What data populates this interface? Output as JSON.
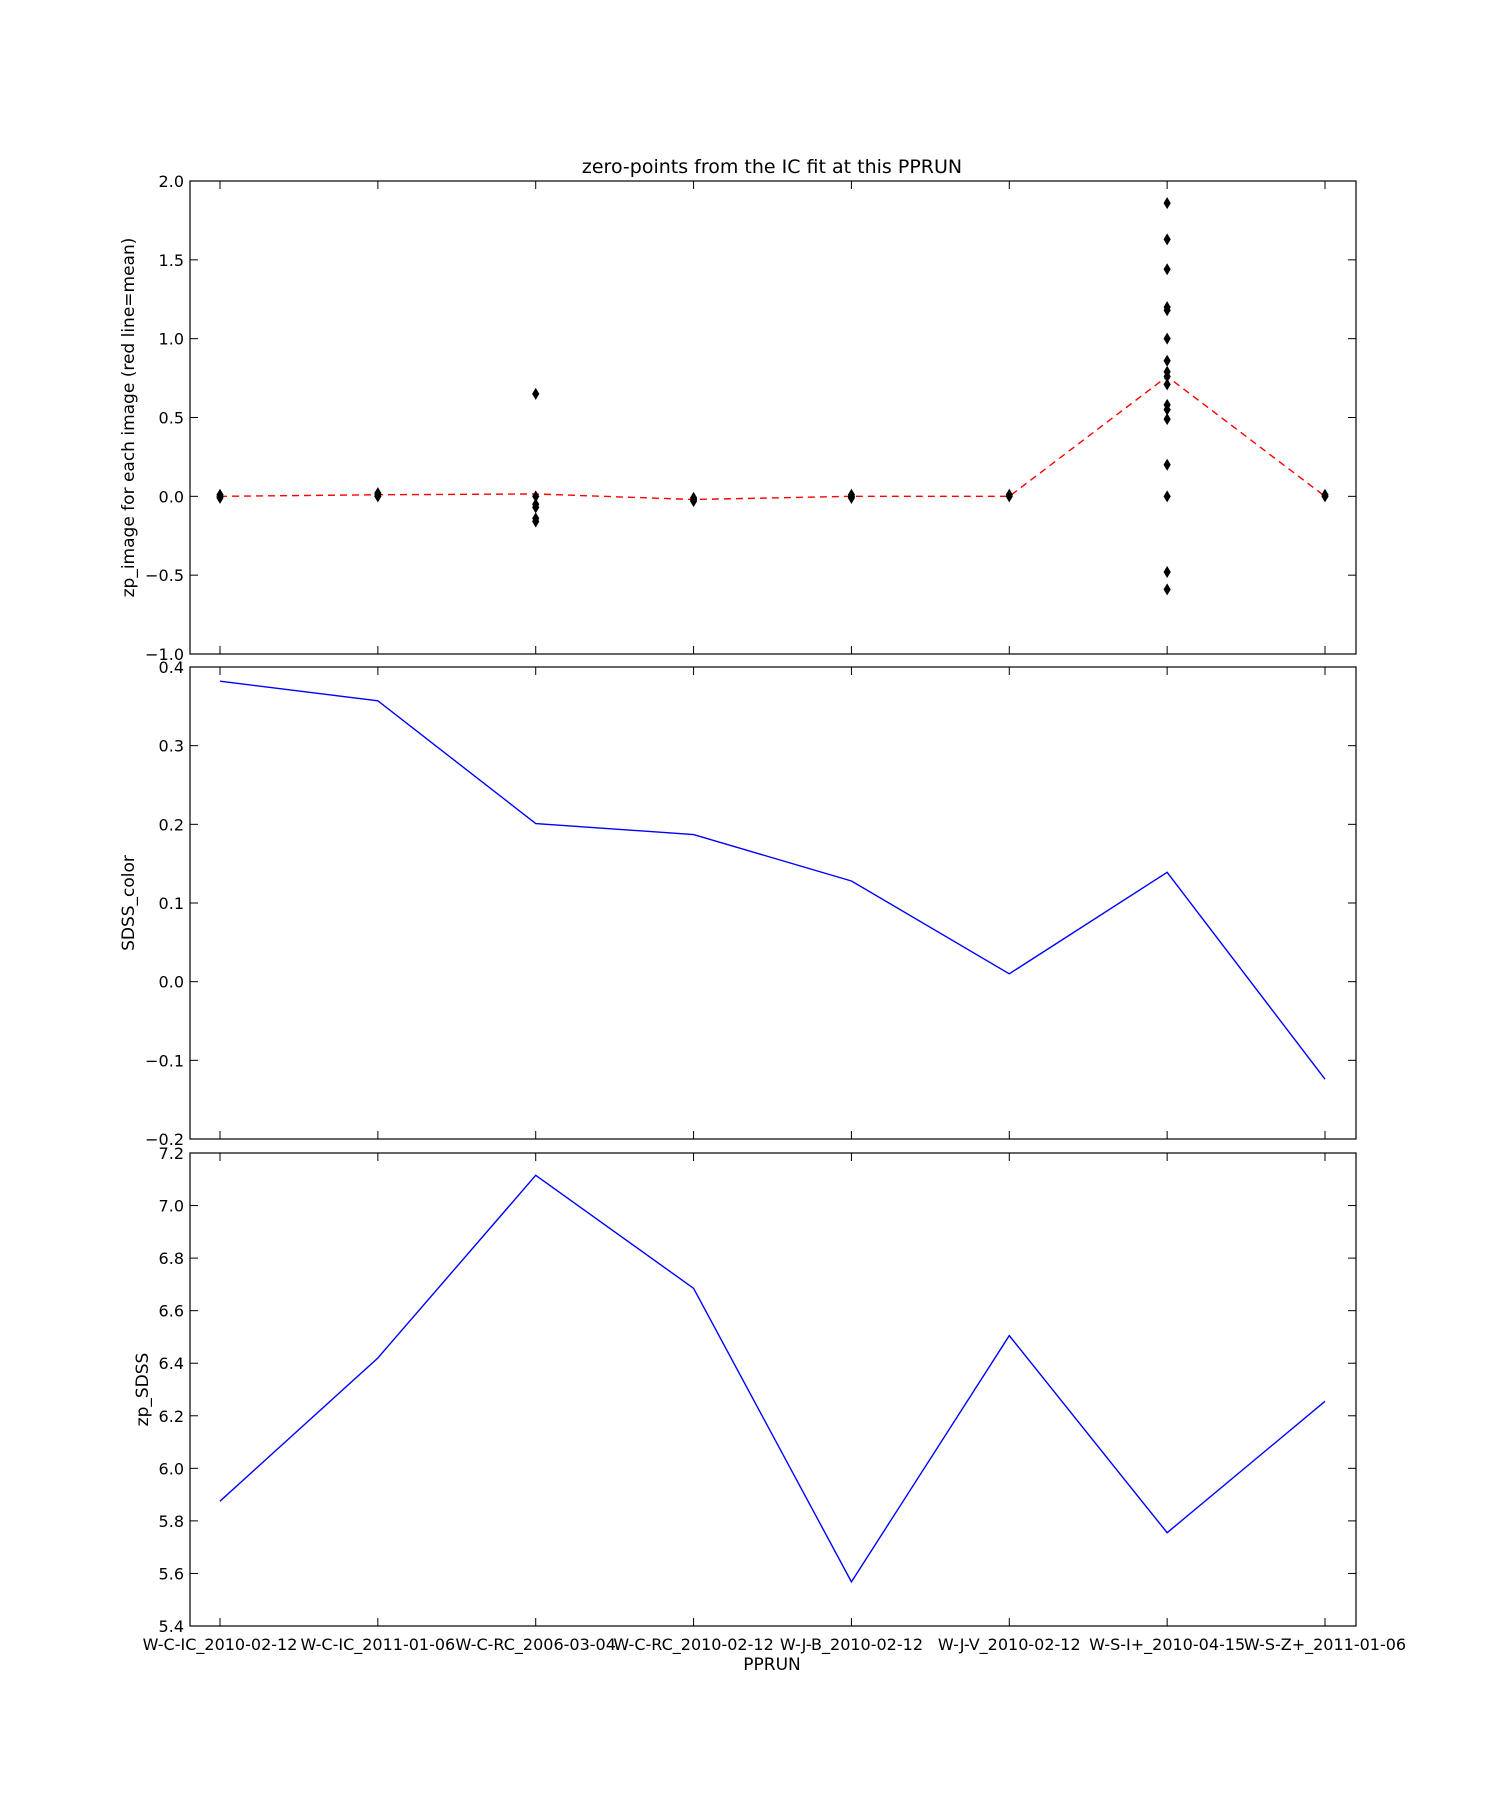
{
  "chart_data": [
    {
      "type": "scatter",
      "title": "zero-points from the IC fit at this PPRUN",
      "xlabel": "",
      "ylabel": "zp_image for each image (red line=mean)",
      "ylim": [
        -1.0,
        2.0
      ],
      "yticks": [
        "−1.0",
        "−0.5",
        "0.0",
        "0.5",
        "1.0",
        "1.5",
        "2.0"
      ],
      "ytick_values": [
        -1.0,
        -0.5,
        0.0,
        0.5,
        1.0,
        1.5,
        2.0
      ],
      "categories": [
        "W-C-IC_2010-02-12",
        "W-C-IC_2011-01-06",
        "W-C-RC_2006-03-04",
        "W-C-RC_2010-02-12",
        "W-J-B_2010-02-12",
        "W-J-V_2010-02-12",
        "W-S-I+_2010-04-15",
        "W-S-Z+_2011-01-06"
      ],
      "points": [
        {
          "category": "W-C-IC_2010-02-12",
          "values": [
            0.0,
            -0.01,
            0.01
          ]
        },
        {
          "category": "W-C-IC_2011-01-06",
          "values": [
            0.0,
            0.01,
            0.02
          ]
        },
        {
          "category": "W-C-RC_2006-03-04",
          "values": [
            0.65,
            0.0,
            -0.05,
            -0.07,
            -0.14,
            -0.16
          ]
        },
        {
          "category": "W-C-RC_2010-02-12",
          "values": [
            -0.01,
            -0.02,
            -0.03
          ]
        },
        {
          "category": "W-J-B_2010-02-12",
          "values": [
            0.0,
            0.01,
            -0.01
          ]
        },
        {
          "category": "W-J-V_2010-02-12",
          "values": [
            0.0,
            0.01
          ]
        },
        {
          "category": "W-S-I+_2010-04-15",
          "values": [
            1.86,
            1.63,
            1.44,
            1.2,
            1.18,
            1.0,
            0.86,
            0.79,
            0.76,
            0.71,
            0.58,
            0.55,
            0.49,
            0.2,
            0.0,
            -0.48,
            -0.59
          ]
        },
        {
          "category": "W-S-Z+_2011-01-06",
          "values": [
            0.0,
            0.01
          ]
        }
      ],
      "mean_line": {
        "values": [
          0.0,
          0.01,
          0.015,
          -0.02,
          0.0,
          0.0,
          0.76,
          0.0
        ],
        "color": "#ff0000",
        "style": "dashed"
      },
      "marker_color": "#000000"
    },
    {
      "type": "line",
      "xlabel": "",
      "ylabel": "SDSS_color",
      "ylim": [
        -0.2,
        0.4
      ],
      "yticks": [
        "−0.2",
        "−0.1",
        "0.0",
        "0.1",
        "0.2",
        "0.3",
        "0.4"
      ],
      "ytick_values": [
        -0.2,
        -0.1,
        0.0,
        0.1,
        0.2,
        0.3,
        0.4
      ],
      "categories": [
        "W-C-IC_2010-02-12",
        "W-C-IC_2011-01-06",
        "W-C-RC_2006-03-04",
        "W-C-RC_2010-02-12",
        "W-J-B_2010-02-12",
        "W-J-V_2010-02-12",
        "W-S-I+_2010-04-15",
        "W-S-Z+_2011-01-06"
      ],
      "values": [
        0.382,
        0.357,
        0.201,
        0.187,
        0.128,
        0.01,
        0.139,
        -0.124
      ],
      "color": "#0000ff"
    },
    {
      "type": "line",
      "xlabel": "PPRUN",
      "ylabel": "zp_SDSS",
      "ylim": [
        5.4,
        7.2
      ],
      "yticks": [
        "5.4",
        "5.6",
        "5.8",
        "6.0",
        "6.2",
        "6.4",
        "6.6",
        "6.8",
        "7.0",
        "7.2"
      ],
      "ytick_values": [
        5.4,
        5.6,
        5.8,
        6.0,
        6.2,
        6.4,
        6.6,
        6.8,
        7.0,
        7.2
      ],
      "categories": [
        "W-C-IC_2010-02-12",
        "W-C-IC_2011-01-06",
        "W-C-RC_2006-03-04",
        "W-C-RC_2010-02-12",
        "W-J-B_2010-02-12",
        "W-J-V_2010-02-12",
        "W-S-I+_2010-04-15",
        "W-S-Z+_2011-01-06"
      ],
      "values": [
        5.875,
        6.42,
        7.115,
        6.685,
        5.568,
        6.505,
        5.755,
        6.255
      ],
      "color": "#0000ff"
    }
  ]
}
